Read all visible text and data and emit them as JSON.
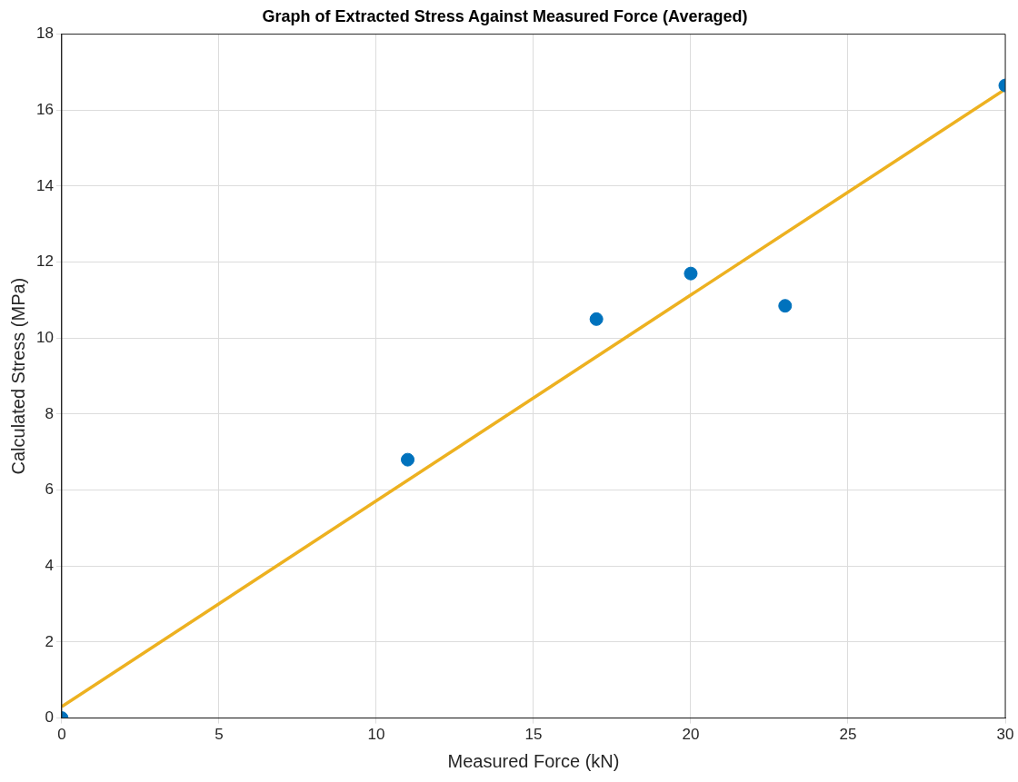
{
  "chart_data": {
    "type": "scatter",
    "title": "Graph of Extracted Stress Against Measured Force (Averaged)",
    "xlabel": "Measured Force (kN)",
    "ylabel": "Calculated Stress (MPa)",
    "series": [
      {
        "type": "scatter",
        "marker": "circle",
        "color": "#0072bd",
        "x": [
          0,
          11,
          17,
          20,
          23,
          30
        ],
        "values": [
          0,
          6.8,
          10.5,
          11.7,
          10.85,
          16.65
        ]
      },
      {
        "type": "line",
        "color": "#edb120",
        "x": [
          0,
          30
        ],
        "values": [
          0.3,
          16.55
        ]
      }
    ],
    "xlim": [
      0,
      30
    ],
    "xticks": [
      0,
      5,
      10,
      15,
      20,
      25,
      30
    ],
    "ylim": [
      0,
      18
    ],
    "yticks": [
      0,
      2,
      4,
      6,
      8,
      10,
      12,
      14,
      16,
      18
    ],
    "grid": true,
    "legend": false
  }
}
